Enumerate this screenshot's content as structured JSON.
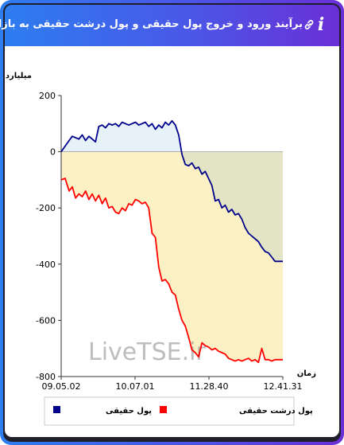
{
  "header": {
    "title": "برآیند ورود و خروج پول حقیقی و پول درشت حقیقی به بازار",
    "info_icon": "info-icon",
    "link_icon": "link-icon"
  },
  "watermark": "LiveTSE.ir",
  "colors": {
    "series_real": "#00008b",
    "series_big": "#ff0000",
    "fill_positive": "#e6f2f8",
    "fill_negative": "#fcf1c5",
    "fill_overlap": "#e3e3c5"
  },
  "chart_data": {
    "type": "line",
    "ylabel": "میلیارد تومان",
    "xlabel": "زمان",
    "ylim": [
      -800,
      200
    ],
    "yticks": [
      200,
      0,
      -200,
      -400,
      -600,
      -800
    ],
    "xticks": [
      "09.05.02",
      "10.07.01",
      "11.28.40",
      "12.41.31"
    ],
    "grid": false,
    "legend_position": "bottom",
    "x_index_max": 100,
    "series": [
      {
        "name": "پول حقیقی",
        "color": "#00008b",
        "fill": true,
        "x": [
          0,
          1.8,
          3.6,
          5,
          6.5,
          8,
          9.5,
          11,
          12.5,
          14,
          15.5,
          17,
          18.5,
          20,
          21.5,
          23,
          24.5,
          26,
          27.5,
          29,
          30.5,
          32,
          33.5,
          35,
          36.5,
          38,
          39.5,
          41,
          42.5,
          44,
          45.5,
          47,
          48.5,
          50,
          51.5,
          53,
          54.5,
          56,
          57.5,
          59,
          60.5,
          62,
          63.5,
          65,
          66.5,
          68,
          69.5,
          71,
          72.5,
          74,
          75.5,
          77,
          78.5,
          80,
          81.5,
          83,
          84.5,
          86,
          87.5,
          89,
          90.5,
          92,
          93.5,
          95,
          96.5,
          98,
          100
        ],
        "values": [
          0,
          20,
          40,
          55,
          50,
          45,
          60,
          40,
          55,
          45,
          35,
          90,
          95,
          85,
          100,
          95,
          100,
          90,
          105,
          100,
          95,
          100,
          105,
          95,
          100,
          105,
          90,
          100,
          80,
          95,
          85,
          105,
          95,
          110,
          95,
          60,
          -10,
          -45,
          -50,
          -40,
          -60,
          -55,
          -80,
          -70,
          -95,
          -120,
          -175,
          -170,
          -200,
          -190,
          -215,
          -205,
          -225,
          -220,
          -240,
          -270,
          -290,
          -300,
          -310,
          -320,
          -340,
          -355,
          -360,
          -375,
          -390,
          -390,
          -390
        ]
      },
      {
        "name": "پول درشت حقیقی",
        "color": "#ff0000",
        "fill": true,
        "x": [
          0,
          1.8,
          3.6,
          5,
          6.5,
          8,
          9.5,
          11,
          12.5,
          14,
          15.5,
          17,
          18.5,
          20,
          21.5,
          23,
          24.5,
          26,
          27.5,
          29,
          30.5,
          32,
          33.5,
          35,
          36.5,
          38,
          39.5,
          41,
          42.5,
          44,
          45.5,
          47,
          48.5,
          50,
          51.5,
          53,
          54.5,
          56,
          57.5,
          59,
          60.5,
          62,
          63.5,
          65,
          66.5,
          68,
          69.5,
          71,
          72.5,
          74,
          75.5,
          77,
          78.5,
          80,
          81.5,
          83,
          84.5,
          86,
          87.5,
          89,
          90.5,
          92,
          93.5,
          95,
          96.5,
          98,
          100
        ],
        "values": [
          -100,
          -95,
          -140,
          -125,
          -165,
          -150,
          -160,
          -140,
          -170,
          -150,
          -175,
          -155,
          -185,
          -165,
          -200,
          -195,
          -215,
          -220,
          -200,
          -210,
          -185,
          -190,
          -170,
          -175,
          -185,
          -180,
          -200,
          -290,
          -305,
          -410,
          -460,
          -455,
          -470,
          -500,
          -510,
          -560,
          -600,
          -620,
          -660,
          -705,
          -715,
          -730,
          -680,
          -690,
          -695,
          -705,
          -700,
          -710,
          -715,
          -720,
          -735,
          -740,
          -745,
          -740,
          -745,
          -740,
          -735,
          -745,
          -740,
          -750,
          -700,
          -740,
          -740,
          -745,
          -740,
          -740,
          -740
        ]
      }
    ]
  }
}
